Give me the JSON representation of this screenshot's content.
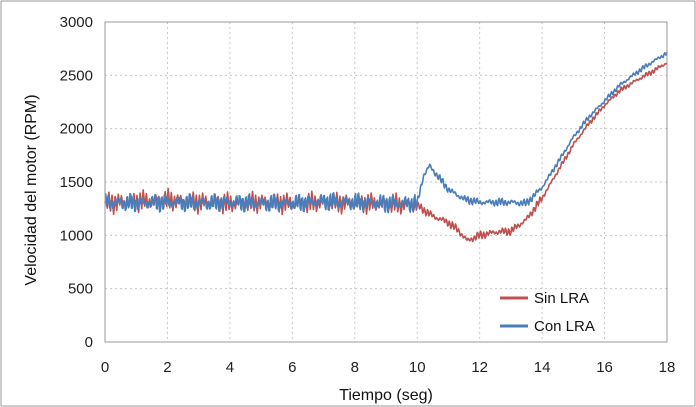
{
  "chart_data": {
    "type": "line",
    "title": "",
    "xlabel": "Tiempo (seg)",
    "ylabel": "Velocidad del motor (RPM)",
    "xlim": [
      0,
      18
    ],
    "ylim": [
      0,
      3000
    ],
    "xticks": [
      "0",
      "2",
      "4",
      "6",
      "8",
      "10",
      "12",
      "14",
      "16",
      "18"
    ],
    "yticks": [
      "0",
      "500",
      "1000",
      "1500",
      "2000",
      "2500",
      "3000"
    ],
    "grid": "dotted",
    "legend_position": "bottom-right",
    "series": [
      {
        "name": "Sin LRA",
        "color": "#c0504d",
        "points": [
          [
            0,
            1300
          ],
          [
            1,
            1320
          ],
          [
            2,
            1330
          ],
          [
            3,
            1310
          ],
          [
            4,
            1300
          ],
          [
            5,
            1310
          ],
          [
            6,
            1300
          ],
          [
            7,
            1310
          ],
          [
            8,
            1300
          ],
          [
            9,
            1300
          ],
          [
            10,
            1280
          ],
          [
            10.5,
            1180
          ],
          [
            11,
            1120
          ],
          [
            11.3,
            1050
          ],
          [
            11.6,
            950
          ],
          [
            12,
            1000
          ],
          [
            12.5,
            1030
          ],
          [
            13,
            1040
          ],
          [
            13.5,
            1150
          ],
          [
            14,
            1350
          ],
          [
            14.5,
            1600
          ],
          [
            15,
            1850
          ],
          [
            15.5,
            2050
          ],
          [
            16,
            2220
          ],
          [
            16.5,
            2360
          ],
          [
            17,
            2450
          ],
          [
            17.5,
            2530
          ],
          [
            18,
            2620
          ]
        ]
      },
      {
        "name": "Con LRA",
        "color": "#4a7ebb",
        "points": [
          [
            0,
            1310
          ],
          [
            1,
            1300
          ],
          [
            2,
            1310
          ],
          [
            3,
            1300
          ],
          [
            4,
            1310
          ],
          [
            5,
            1300
          ],
          [
            6,
            1300
          ],
          [
            7,
            1320
          ],
          [
            8,
            1310
          ],
          [
            9,
            1300
          ],
          [
            10,
            1300
          ],
          [
            10.2,
            1560
          ],
          [
            10.4,
            1650
          ],
          [
            10.7,
            1540
          ],
          [
            11,
            1430
          ],
          [
            11.5,
            1340
          ],
          [
            12,
            1310
          ],
          [
            12.5,
            1310
          ],
          [
            13,
            1310
          ],
          [
            13.5,
            1300
          ],
          [
            14,
            1450
          ],
          [
            14.5,
            1680
          ],
          [
            15,
            1920
          ],
          [
            15.5,
            2110
          ],
          [
            16,
            2260
          ],
          [
            16.5,
            2410
          ],
          [
            17,
            2520
          ],
          [
            17.5,
            2620
          ],
          [
            18,
            2710
          ]
        ]
      }
    ]
  }
}
